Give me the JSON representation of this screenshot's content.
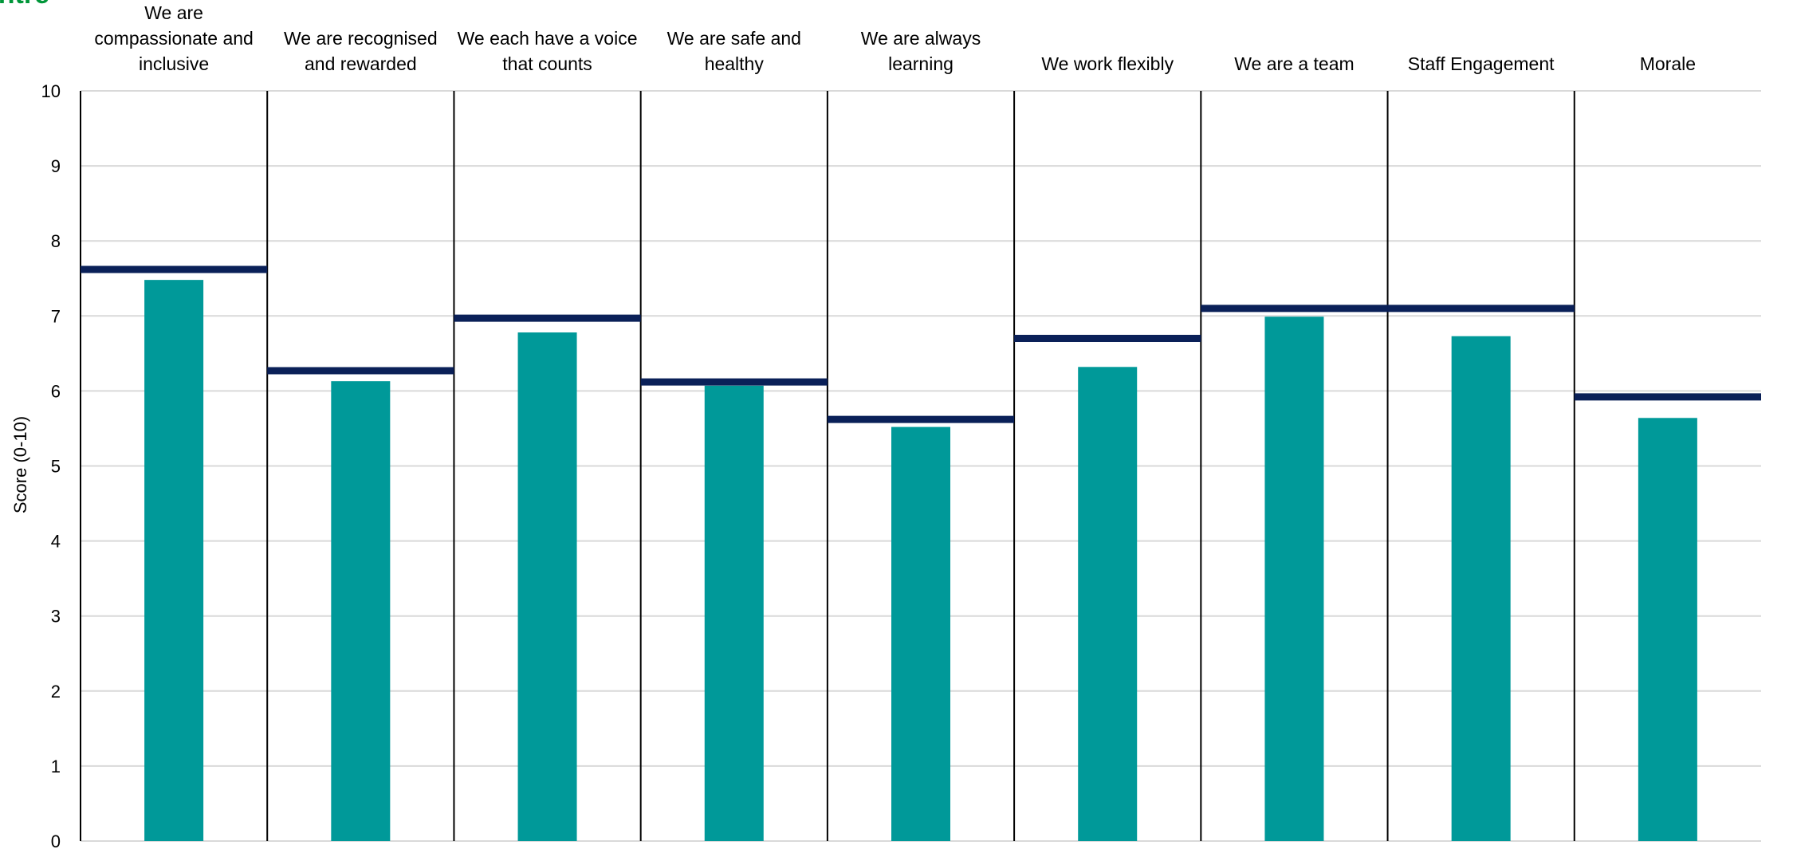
{
  "logo_fragment": "ntre",
  "colors": {
    "bar": "#009999",
    "benchmark": "#0a2058",
    "gridline": "#d9d9d9",
    "divider": "#000000",
    "axis": "#595959",
    "logo": "#009639"
  },
  "chart_data": {
    "type": "bar",
    "title": "",
    "xlabel": "",
    "ylabel": "Score (0-10)",
    "ylim": [
      0,
      10
    ],
    "yticks": [
      "0",
      "1",
      "2",
      "3",
      "4",
      "5",
      "6",
      "7",
      "8",
      "9",
      "10"
    ],
    "grid": true,
    "categories": [
      [
        "We are",
        "compassionate and",
        "inclusive"
      ],
      [
        "We are recognised",
        "and rewarded"
      ],
      [
        "We each have a voice",
        "that counts"
      ],
      [
        "We are safe and",
        "healthy"
      ],
      [
        "We are always",
        "learning"
      ],
      [
        "We work flexibly"
      ],
      [
        "We are a team"
      ],
      [
        "Staff Engagement"
      ],
      [
        "Morale"
      ]
    ],
    "series": [
      {
        "values": [
          7.48,
          6.13,
          6.78,
          6.07,
          5.52,
          6.32,
          6.99,
          6.73,
          5.64
        ]
      },
      {
        "values": [
          7.62,
          6.27,
          6.97,
          6.12,
          5.62,
          6.7,
          7.1,
          7.1,
          5.92
        ]
      }
    ]
  }
}
